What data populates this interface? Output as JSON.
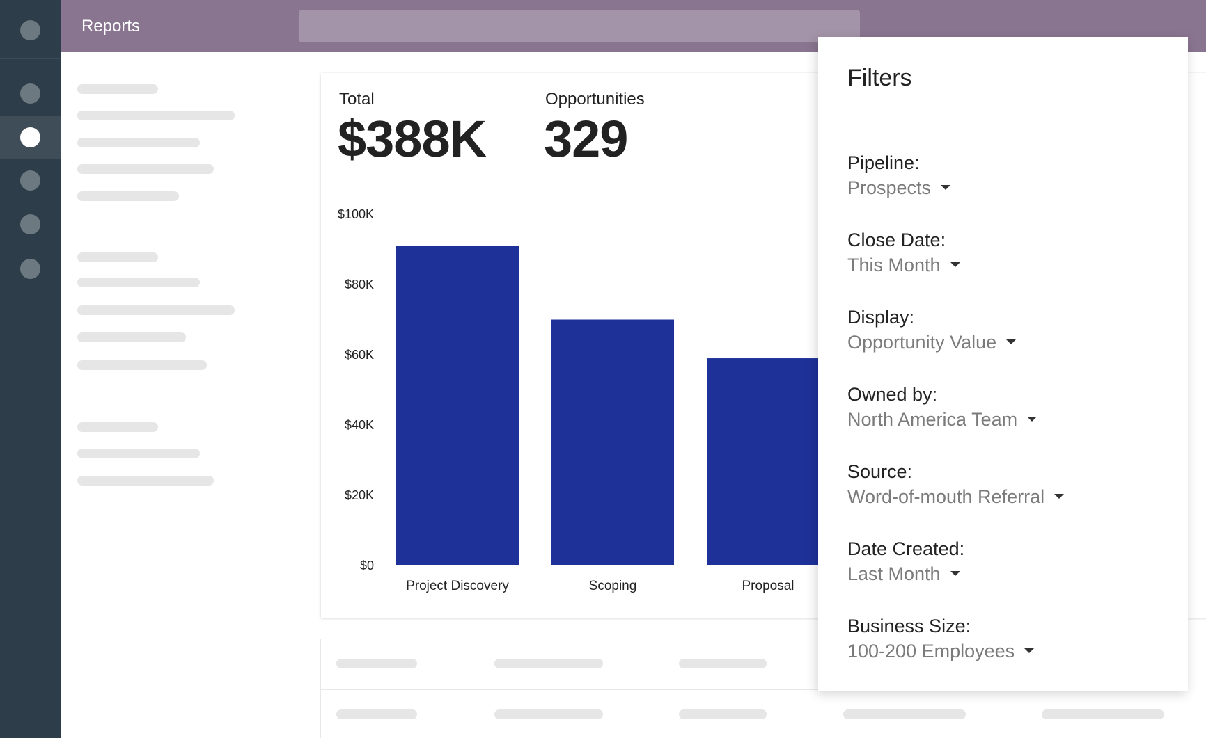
{
  "header": {
    "title": "Reports"
  },
  "kpis": [
    {
      "label": "Total",
      "value": "$388K"
    },
    {
      "label": "Opportunities",
      "value": "329"
    }
  ],
  "chart_data": {
    "type": "bar",
    "categories": [
      "Project Discovery",
      "Scoping",
      "Proposal"
    ],
    "values": [
      91,
      70,
      59
    ],
    "ylim": [
      0,
      100
    ],
    "yticks": [
      "$0",
      "$20K",
      "$40K",
      "$60K",
      "$80K",
      "$100K"
    ],
    "bar_color": "#1e3199",
    "grid": false
  },
  "filters": {
    "title": "Filters",
    "items": [
      {
        "label": "Pipeline:",
        "value": "Prospects"
      },
      {
        "label": "Close Date:",
        "value": "This Month"
      },
      {
        "label": "Display:",
        "value": "Opportunity Value"
      },
      {
        "label": "Owned by:",
        "value": "North America Team"
      },
      {
        "label": "Source:",
        "value": "Word-of-mouth Referral"
      },
      {
        "label": "Date Created:",
        "value": "Last Month"
      },
      {
        "label": "Business Size:",
        "value": "100-200 Employees"
      }
    ]
  },
  "colors": {
    "rail": "#2e3d4a",
    "header": "#8a7590",
    "accent_bar": "#1e3199"
  }
}
